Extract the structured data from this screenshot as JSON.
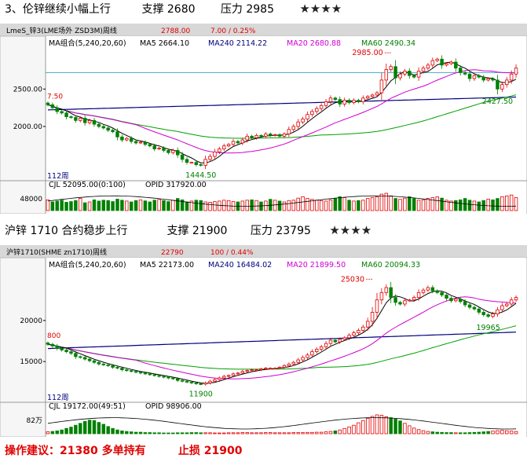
{
  "heading1": {
    "title": "3、伦锌继续小幅上行",
    "support": "支撑 2680",
    "resist": "压力 2985",
    "stars": "★★★★"
  },
  "heading2": {
    "title": "沪锌 1710 合约稳步上行",
    "support": "支撑 21900",
    "resist": "压力 23795",
    "stars": "★★★★"
  },
  "advice": {
    "label": "操作建议：21380 多单持有",
    "stop": "止损 21900"
  },
  "colors": {
    "up": "#e00000",
    "down": "#008000",
    "ma5": "#000000",
    "ma20": "#d000d0",
    "ma60": "#00a000",
    "ma240": "#000080",
    "hline": "#44aacc"
  },
  "chart_data": [
    {
      "type": "candlestick",
      "title": "LmeS_锌3(LME场外 ZSD3M)周线",
      "quote": {
        "price": "2788.00",
        "change": "7.00 / 0.25%"
      },
      "ma_legend": {
        "label": "MA组合(5,240,20,60)",
        "ma5": "MA5 2664.10",
        "ma240": "MA240 2114.22",
        "ma20": "MA20 2680.88",
        "ma60": "MA60 2490.34"
      },
      "period": "112周",
      "volume_legend": {
        "cjl": "CJL  52095.00(0:100)",
        "opid": "OPID  317920.00"
      },
      "y_ticks": [
        {
          "v": 2500,
          "label": "2500.00"
        },
        {
          "v": 2000,
          "label": "2000.00"
        }
      ],
      "volume_tick": "48000",
      "ylim": [
        1380,
        3060
      ],
      "left_price_label": "7.50",
      "annotations": {
        "high": {
          "label": "2985.00",
          "value": 2985,
          "index": 74
        },
        "low": {
          "label": "1444.50",
          "value": 1444.5,
          "index": 33
        },
        "recent_low": {
          "label": "2427.50",
          "value": 2427.5,
          "index": 97
        }
      },
      "ref_line": 2720,
      "closes": [
        2290,
        2250,
        2200,
        2180,
        2130,
        2120,
        2080,
        2110,
        2050,
        2080,
        2030,
        2000,
        1980,
        1950,
        1930,
        1860,
        1820,
        1840,
        1800,
        1780,
        1790,
        1760,
        1740,
        1700,
        1710,
        1680,
        1650,
        1680,
        1620,
        1560,
        1520,
        1520,
        1490,
        1480,
        1560,
        1600,
        1660,
        1700,
        1740,
        1760,
        1800,
        1780,
        1820,
        1870,
        1850,
        1880,
        1870,
        1900,
        1880,
        1890,
        1870,
        1900,
        1960,
        2000,
        2060,
        2100,
        2160,
        2200,
        2240,
        2280,
        2330,
        2380,
        2360,
        2300,
        2350,
        2320,
        2350,
        2330,
        2380,
        2400,
        2420,
        2450,
        2620,
        2760,
        2800,
        2650,
        2700,
        2740,
        2680,
        2660,
        2740,
        2780,
        2820,
        2880,
        2900,
        2820,
        2840,
        2860,
        2780,
        2720,
        2700,
        2640,
        2680,
        2660,
        2620,
        2640,
        2620,
        2500,
        2560,
        2620,
        2700,
        2780
      ],
      "volumes": [
        0.62,
        0.5,
        0.55,
        0.6,
        0.48,
        0.52,
        0.58,
        0.7,
        0.45,
        0.5,
        0.62,
        0.55,
        0.6,
        0.58,
        0.52,
        0.66,
        0.6,
        0.55,
        0.5,
        0.58,
        0.62,
        0.56,
        0.5,
        0.6,
        0.64,
        0.58,
        0.52,
        0.6,
        0.7,
        0.62,
        0.5,
        0.55,
        0.6,
        0.58,
        0.5,
        0.48,
        0.52,
        0.55,
        0.6,
        0.58,
        0.52,
        0.5,
        0.55,
        0.6,
        0.62,
        0.58,
        0.5,
        0.55,
        0.65,
        0.6,
        0.55,
        0.5,
        0.58,
        0.6,
        0.72,
        0.8,
        0.7,
        0.65,
        0.6,
        0.58,
        0.55,
        0.62,
        0.7,
        0.8,
        0.75,
        0.6,
        0.55,
        0.58,
        0.6,
        0.7,
        0.75,
        0.8,
        0.95,
        1.0,
        0.85,
        0.7,
        0.65,
        0.72,
        0.8,
        0.7,
        0.6,
        0.62,
        0.7,
        0.75,
        0.8,
        0.72,
        0.6,
        0.55,
        0.58,
        0.62,
        0.7,
        0.6,
        0.55,
        0.5,
        0.58,
        0.66,
        0.62,
        0.7,
        0.8,
        0.85,
        0.9,
        0.75
      ]
    },
    {
      "type": "candlestick",
      "title": "沪锌1710(SHME zn1710)周线",
      "quote": {
        "price": "22790",
        "change": "100 / 0.44%"
      },
      "ma_legend": {
        "label": "MA组合(5,240,20,60)",
        "ma5": "MA5 22173.00",
        "ma240": "MA240 16484.02",
        "ma20": "MA20 21899.50",
        "ma60": "MA60 20094.33"
      },
      "period": "112周",
      "volume_legend": {
        "cjl": "CJL  19172.00(49:51)",
        "opid": "OPID  98906.00"
      },
      "y_ticks": [
        {
          "v": 20000,
          "label": "20000"
        },
        {
          "v": 15000,
          "label": "15000"
        }
      ],
      "volume_tick": "82万",
      "ylim": [
        11000,
        26300
      ],
      "left_price_label": "800",
      "annotations": {
        "high": {
          "label": "25030",
          "value": 25030,
          "index": 70
        },
        "low": {
          "label": "11900",
          "value": 11900,
          "index": 33
        },
        "recent_low": {
          "label": "19965",
          "value": 19965,
          "index": 95
        }
      },
      "closes": [
        17100,
        16900,
        16600,
        16400,
        16200,
        16000,
        15600,
        15500,
        15300,
        15100,
        14900,
        14700,
        14600,
        14500,
        14300,
        14200,
        14000,
        13900,
        13800,
        13700,
        13600,
        13500,
        13400,
        13300,
        13200,
        13100,
        13000,
        12900,
        12700,
        12600,
        12500,
        12400,
        12300,
        12250,
        12400,
        12600,
        12800,
        13000,
        13200,
        13300,
        13500,
        13600,
        13800,
        13900,
        14000,
        14000,
        14100,
        14200,
        14200,
        14200,
        14300,
        14500,
        14700,
        14900,
        15200,
        15500,
        15800,
        16200,
        16500,
        16800,
        17200,
        17600,
        17400,
        17700,
        17900,
        18200,
        18500,
        18800,
        19200,
        19900,
        21000,
        22500,
        23400,
        24000,
        22800,
        22200,
        22000,
        22400,
        22500,
        22800,
        23400,
        23700,
        24000,
        23600,
        23400,
        23100,
        22700,
        22400,
        22600,
        22300,
        21900,
        21600,
        21400,
        21000,
        20700,
        20500,
        20800,
        21300,
        21800,
        22000,
        22500,
        22800
      ],
      "volumes": [
        0.1,
        0.12,
        0.15,
        0.2,
        0.28,
        0.35,
        0.45,
        0.55,
        0.65,
        0.72,
        0.7,
        0.6,
        0.5,
        0.38,
        0.28,
        0.2,
        0.15,
        0.12,
        0.1,
        0.08,
        0.08,
        0.06,
        0.06,
        0.05,
        0.05,
        0.04,
        0.04,
        0.04,
        0.05,
        0.05,
        0.05,
        0.06,
        0.06,
        0.05,
        0.05,
        0.05,
        0.04,
        0.04,
        0.04,
        0.05,
        0.05,
        0.05,
        0.06,
        0.06,
        0.05,
        0.05,
        0.05,
        0.06,
        0.06,
        0.05,
        0.05,
        0.05,
        0.05,
        0.06,
        0.06,
        0.06,
        0.07,
        0.07,
        0.08,
        0.08,
        0.1,
        0.12,
        0.15,
        0.2,
        0.28,
        0.36,
        0.45,
        0.58,
        0.7,
        0.82,
        0.92,
        1.0,
        0.98,
        0.9,
        0.85,
        0.78,
        0.68,
        0.55,
        0.42,
        0.3,
        0.22,
        0.16,
        0.12,
        0.1,
        0.08,
        0.07,
        0.06,
        0.06,
        0.05,
        0.05,
        0.05,
        0.06,
        0.07,
        0.08,
        0.1,
        0.12,
        0.14,
        0.16,
        0.18,
        0.16,
        0.14,
        0.12
      ]
    }
  ]
}
